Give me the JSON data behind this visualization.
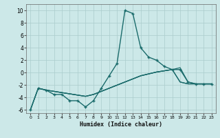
{
  "xlabel": "Humidex (Indice chaleur)",
  "bg_color": "#cce8e8",
  "grid_color": "#aacccc",
  "line_color": "#1a6b6b",
  "xlim": [
    -0.5,
    23.5
  ],
  "ylim": [
    -6.5,
    11.0
  ],
  "xticks": [
    0,
    1,
    2,
    3,
    4,
    5,
    6,
    7,
    8,
    9,
    10,
    11,
    12,
    13,
    14,
    15,
    16,
    17,
    18,
    19,
    20,
    21,
    22,
    23
  ],
  "yticks": [
    -6,
    -4,
    -2,
    0,
    2,
    4,
    6,
    8,
    10
  ],
  "main_x": [
    0,
    1,
    2,
    3,
    4,
    5,
    6,
    7,
    8,
    9,
    10,
    11,
    12,
    13,
    14,
    15,
    16,
    17,
    18,
    19,
    20,
    21,
    22,
    23
  ],
  "main_y": [
    -6,
    -2.5,
    -2.8,
    -3.5,
    -3.5,
    -4.5,
    -4.5,
    -5.5,
    -4.5,
    -2.5,
    -0.5,
    1.5,
    10,
    9.5,
    4,
    2.5,
    2,
    1,
    0.5,
    0.5,
    -1.5,
    -1.8,
    -1.8,
    -1.8
  ],
  "env1_x": [
    0,
    1,
    2,
    3,
    4,
    5,
    6,
    7,
    8,
    9,
    10,
    11,
    12,
    13,
    14,
    15,
    16,
    17,
    18,
    19,
    20,
    21,
    22,
    23
  ],
  "env1_y": [
    -6,
    -2.5,
    -2.8,
    -3.0,
    -3.2,
    -3.4,
    -3.6,
    -3.8,
    -3.5,
    -3.0,
    -2.5,
    -2.0,
    -1.5,
    -1.0,
    -0.5,
    -0.2,
    0.1,
    0.3,
    0.5,
    0.8,
    -1.5,
    -1.8,
    -1.8,
    -1.8
  ],
  "env2_x": [
    0,
    1,
    2,
    3,
    4,
    5,
    6,
    7,
    8,
    9,
    10,
    11,
    12,
    13,
    14,
    15,
    16,
    17,
    18,
    19,
    20,
    21,
    22,
    23
  ],
  "env2_y": [
    -6,
    -2.5,
    -2.8,
    -3.0,
    -3.2,
    -3.4,
    -3.6,
    -3.8,
    -3.5,
    -3.0,
    -2.5,
    -2.0,
    -1.5,
    -1.0,
    -0.5,
    -0.2,
    0.1,
    0.3,
    0.5,
    -1.5,
    -1.8,
    -1.8,
    -1.8,
    -1.8
  ],
  "env3_x": [
    1,
    2,
    3,
    4,
    5,
    6,
    7,
    8,
    9,
    10,
    11,
    12,
    13,
    14,
    15,
    16,
    17,
    18,
    19,
    20,
    21,
    22,
    23
  ],
  "env3_y": [
    -2.5,
    -2.8,
    -3.0,
    -3.2,
    -3.4,
    -3.6,
    -3.8,
    -3.5,
    -3.0,
    -2.5,
    -2.0,
    -1.5,
    -1.0,
    -0.5,
    -0.2,
    0.1,
    0.3,
    0.5,
    -1.5,
    -1.8,
    -1.8,
    -1.8,
    -1.8
  ]
}
